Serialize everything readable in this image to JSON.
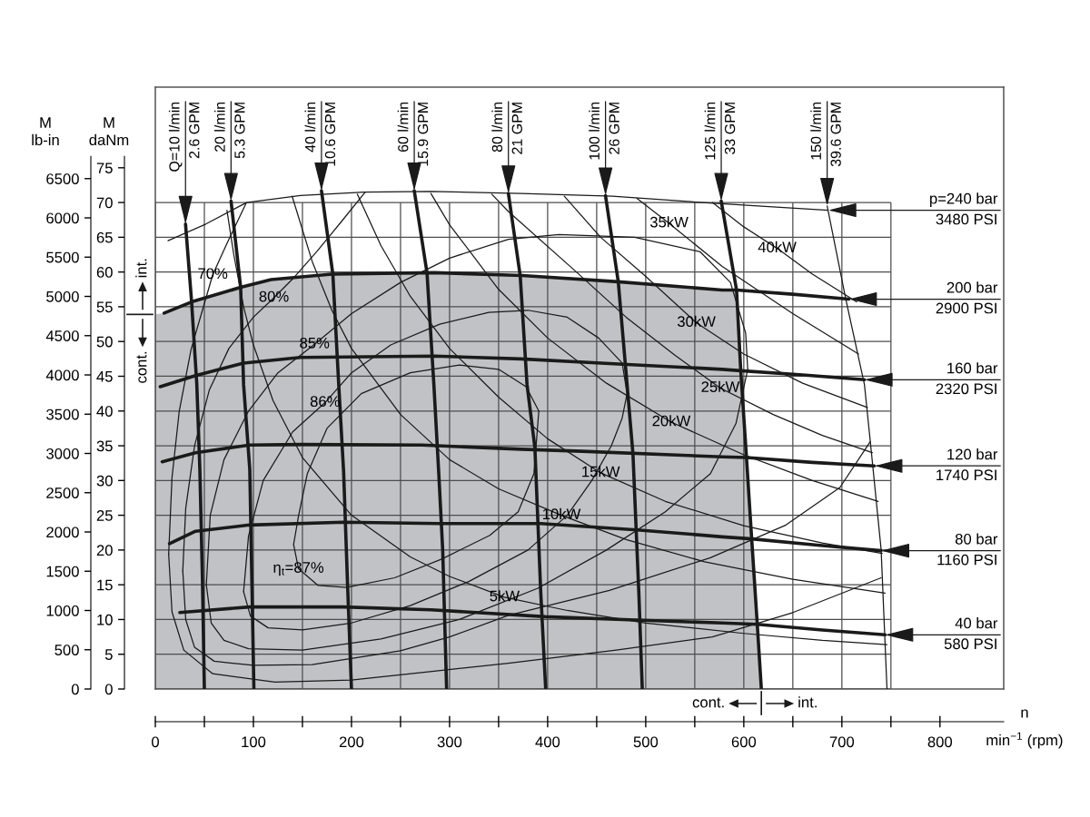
{
  "chart_data": {
    "type": "line",
    "xlabel": "n\nmin$^{−1}$ (rpm)",
    "ylabel": "M\ndaNm",
    "y2label": "M\nlb-in",
    "xlim": [
      0,
      865
    ],
    "ylim": [
      0,
      86.6
    ],
    "y2lim": [
      0,
      7665
    ],
    "xticks": [
      0,
      {
        "value": 50,
        "label": null
      },
      100,
      {
        "value": 150,
        "label": null
      },
      200,
      {
        "value": 250,
        "label": null
      },
      300,
      {
        "value": 350,
        "label": null
      },
      400,
      {
        "value": 450,
        "label": null
      },
      500,
      {
        "value": 550,
        "label": null
      },
      600,
      {
        "value": 650,
        "label": null
      },
      700,
      {
        "value": 750,
        "label": null
      },
      800
    ],
    "yticks": [
      0,
      5,
      10,
      15,
      20,
      25,
      30,
      35,
      40,
      45,
      50,
      55,
      60,
      65,
      70,
      75
    ],
    "y2ticks": [
      0,
      500,
      1000,
      1500,
      2000,
      2500,
      3000,
      3500,
      4000,
      4500,
      5000,
      5500,
      6000,
      6500
    ],
    "grid": true,
    "series": [
      {
        "type": "area",
        "color": "#c1c2c6",
        "x": [
          0,
          9,
          37,
          87,
          118,
          180,
          285,
          374,
          472,
          578,
          592.6,
          596.9,
          602.7,
          608,
          613.7,
          617.9
        ],
        "values": [
          53.9,
          54.1,
          55.7,
          57.8,
          58.9,
          59.7,
          59.9,
          59.5,
          58.6,
          57.4,
          57.4,
          45.8,
          33.4,
          21.7,
          9.4,
          0
        ]
      },
      {
        "name": "p=240 bar\n3480 PSI",
        "color": "#1a1a1a",
        "x": [
          13,
          51.5,
          93,
          148,
          213,
          281,
          373,
          466,
          558,
          686
        ],
        "values": [
          64.5,
          66.9,
          70.0,
          71.0,
          71.5,
          71.6,
          71.3,
          70.9,
          70.0,
          68.9
        ]
      },
      {
        "name": "200 bar\n2900 PSI",
        "color": "#1a1a1a",
        "x": [
          9,
          37,
          87,
          118,
          180,
          285,
          374,
          472,
          578,
          592.6,
          650,
          707
        ],
        "values": [
          54.1,
          55.7,
          57.8,
          58.9,
          59.7,
          59.9,
          59.5,
          58.6,
          57.4,
          57.4,
          56.8,
          56.1
        ]
      },
      {
        "name": "160 bar\n2320 PSI",
        "color": "#1a1a1a",
        "x": [
          5,
          41,
          90,
          148,
          285,
          373,
          481,
          578,
          596.9,
          660,
          723
        ],
        "values": [
          43.5,
          45.1,
          46.9,
          47.7,
          47.9,
          47.5,
          46.7,
          46.0,
          45.8,
          45.2,
          44.5
        ]
      },
      {
        "name": "120 bar\n1740 PSI",
        "color": "#1a1a1a",
        "x": [
          7,
          41,
          96,
          148,
          272,
          373,
          435,
          578,
          602.7,
          670,
          733
        ],
        "values": [
          32.7,
          34.0,
          35.1,
          35.2,
          35.1,
          34.5,
          34.2,
          33.4,
          33.3,
          32.6,
          32.1
        ]
      },
      {
        "name": "80 bar\n1160 PSI",
        "color": "#1a1a1a",
        "x": [
          14.5,
          41,
          96,
          192,
          290,
          393,
          491,
          578,
          608,
          675,
          740
        ],
        "values": [
          20.9,
          22.7,
          23.6,
          24.0,
          23.8,
          23.8,
          22.9,
          21.9,
          21.6,
          20.7,
          19.9
        ]
      },
      {
        "name": "40 bar\n580 PSI",
        "color": "#1a1a1a",
        "x": [
          25,
          96,
          192,
          281,
          398,
          496,
          578,
          613.7,
          680,
          744
        ],
        "values": [
          11.0,
          11.8,
          11.8,
          11.4,
          10.4,
          9.9,
          9.5,
          9.3,
          8.5,
          7.8
        ]
      },
      {
        "name": "Q=10 l/min\n2.6 GPM",
        "color": "#1a1a1a",
        "x": [
          30.8,
          37,
          42.3,
          45.4,
          48,
          50
        ],
        "values": [
          66.9,
          55.7,
          43.8,
          31.6,
          16,
          0
        ]
      },
      {
        "name": "20 l/min\n5.3 GPM",
        "color": "#1a1a1a",
        "x": [
          77.2,
          87,
          90,
          96.3,
          98.5,
          100.5
        ],
        "values": [
          70.2,
          57.8,
          43.8,
          31.6,
          15,
          0
        ]
      },
      {
        "name": "40 l/min\n10.6 GPM",
        "color": "#1a1a1a",
        "x": [
          169.4,
          181,
          187,
          192,
          196,
          200
        ],
        "values": [
          71.7,
          59.7,
          43.8,
          31.2,
          15,
          0
        ]
      },
      {
        "name": "60 l/min\n15.9 GPM",
        "color": "#1a1a1a",
        "x": [
          264,
          277,
          284,
          289,
          293,
          297
        ],
        "values": [
          71.7,
          59.9,
          43.8,
          31,
          20,
          0
        ]
      },
      {
        "name": "80 l/min\n21 GPM",
        "color": "#1a1a1a",
        "x": [
          360,
          372,
          379,
          387,
          393,
          398
        ],
        "values": [
          71.3,
          59.5,
          43.8,
          34.7,
          13.8,
          0
        ]
      },
      {
        "name": "100 l/min\n26 GPM",
        "color": "#1a1a1a",
        "x": [
          459,
          472,
          481,
          487,
          493,
          496.5
        ],
        "values": [
          71.0,
          58.6,
          43.8,
          33.8,
          13.8,
          0
        ]
      },
      {
        "name": "125 l/min\n33 GPM",
        "color": "#1a1a1a",
        "x": [
          577,
          592.6,
          596.9,
          602.7,
          608,
          613.7,
          617.9
        ],
        "values": [
          70.2,
          57.4,
          45.8,
          33.4,
          21.7,
          9.4,
          0
        ]
      },
      {
        "name": "150 l/min\n39.6 GPM",
        "color": "#1a1a1a",
        "x": [
          685,
          704,
          723,
          729,
          740,
          746
        ],
        "values": [
          69.5,
          56.1,
          43.8,
          35.6,
          20.1,
          0
        ]
      },
      {
        "color": "#1a1a1a",
        "x": [
          73,
          80,
          90,
          100,
          120,
          150,
          200,
          260,
          300,
          356,
          420,
          500,
          600,
          680,
          746
        ],
        "values": [
          68.9,
          62.5,
          55,
          49.5,
          41.5,
          33.3,
          25,
          19,
          16.2,
          13.2,
          11.3,
          9.5,
          8,
          7,
          6.4
        ]
      },
      {
        "color": "#1a1a1a",
        "x": [
          139.5,
          160,
          180,
          200,
          250,
          300,
          350,
          414,
          480,
          560,
          650,
          744
        ],
        "values": [
          70.9,
          61.5,
          54.5,
          49,
          39.5,
          33,
          28.8,
          25,
          21.5,
          18.3,
          15.8,
          13.8
        ]
      },
      {
        "color": "#1a1a1a",
        "x": [
          206,
          230,
          260,
          300,
          350,
          400,
          454,
          520,
          600,
          680,
          741
        ],
        "values": [
          71.2,
          63.8,
          56.5,
          49,
          42,
          36,
          31.1,
          27,
          23.5,
          21,
          19.5
        ]
      },
      {
        "color": "#1a1a1a",
        "x": [
          281,
          300,
          350,
          400,
          460,
          526,
          600,
          670,
          737
        ],
        "values": [
          71.3,
          66.8,
          57.5,
          50.5,
          44,
          38.4,
          33.7,
          30,
          27
        ]
      },
      {
        "color": "#1a1a1a",
        "x": [
          343,
          360,
          427,
          480,
          530,
          576,
          630,
          680,
          731
        ],
        "values": [
          71.2,
          68.7,
          60.3,
          53.5,
          48,
          43.3,
          39.5,
          36.5,
          34
        ]
      },
      {
        "color": "#1a1a1a",
        "x": [
          417,
          454,
          499,
          551.6,
          600,
          660,
          726
        ],
        "values": [
          70.9,
          65,
          59.5,
          52.7,
          48.2,
          44,
          40.5
        ]
      },
      {
        "color": "#1a1a1a",
        "x": [
          491,
          523.8,
          578,
          650,
          717
        ],
        "values": [
          70.6,
          67,
          60.8,
          54,
          48.2
        ]
      },
      {
        "color": "#1a1a1a",
        "x": [
          568,
          600,
          634,
          670,
          715
        ],
        "values": [
          70,
          66.5,
          63.4,
          59.7,
          55.7
        ]
      },
      {
        "color": "#1a1a1a",
        "x": [
          13.6,
          17,
          24.4,
          36.5,
          48,
          58.5,
          73,
          92.6
        ],
        "values": [
          19.4,
          30.4,
          40,
          48.9,
          54.5,
          59.6,
          64.1,
          69.9
        ]
      },
      {
        "color": "#1a1a1a",
        "x": [
          13.6,
          17,
          29,
          58.5,
          122,
          200,
          280,
          360,
          470,
          568,
          650,
          740
        ],
        "values": [
          19.4,
          11.1,
          5.6,
          2.2,
          1,
          1.3,
          2.5,
          3.7,
          5.6,
          7.5,
          11,
          16
        ]
      },
      {
        "color": "#1a1a1a",
        "x": [
          28,
          31,
          40,
          55,
          75,
          100,
          120.9,
          140,
          165,
          190,
          214
        ],
        "values": [
          17,
          26,
          35,
          43,
          49,
          53.5,
          56.3,
          59,
          63,
          67.3,
          71.5
        ]
      },
      {
        "color": "#1a1a1a",
        "x": [
          28,
          31,
          40,
          60,
          100,
          160,
          250,
          300,
          360,
          463,
          566,
          643,
          698,
          729
        ],
        "values": [
          17,
          10,
          6,
          4,
          3.4,
          3.5,
          5.5,
          7.5,
          10.6,
          14.2,
          18.9,
          23.6,
          29,
          35.6
        ]
      },
      {
        "color": "#1a1a1a",
        "x": [
          52,
          56,
          70,
          95,
          125,
          162.3,
          200,
          250,
          300,
          360,
          411.6,
          488.7,
          555.6,
          586.4,
          601.9,
          604
        ],
        "values": [
          15,
          25,
          33,
          40,
          45.5,
          49.6,
          54,
          58.5,
          62,
          64.7,
          65.4,
          65,
          62.9,
          58.5,
          51.2,
          46
        ]
      },
      {
        "color": "#1a1a1a",
        "x": [
          52,
          57,
          70,
          95,
          150,
          230,
          310,
          390,
          460,
          520,
          566,
          592,
          604
        ],
        "values": [
          15,
          9.5,
          7,
          5.8,
          5.6,
          7.2,
          10,
          14.5,
          20,
          25.5,
          31,
          38.2,
          46
        ]
      },
      {
        "color": "#1a1a1a",
        "x": [
          90,
          95,
          110,
          140,
          173,
          200,
          240,
          290,
          340,
          380,
          420,
          452,
          476,
          481
        ],
        "values": [
          14,
          22,
          30,
          37,
          41.2,
          45.5,
          49.5,
          52.5,
          54.2,
          54.5,
          53.5,
          50.5,
          46.9,
          42.5
        ]
      },
      {
        "color": "#1a1a1a",
        "x": [
          90,
          97,
          115,
          150,
          200,
          260,
          320,
          380,
          420,
          445,
          465,
          476,
          481
        ],
        "values": [
          14,
          10.5,
          8.8,
          8.5,
          9.5,
          12,
          15.5,
          20,
          25,
          30,
          35,
          39,
          42.5
        ]
      },
      {
        "color": "#1a1a1a",
        "x": [
          141,
          146,
          155,
          175,
          210,
          260,
          310,
          350,
          378,
          391
        ],
        "values": [
          20.8,
          24.9,
          31,
          37.5,
          42.5,
          45.5,
          46.6,
          46,
          43.5,
          40
        ]
      },
      {
        "color": "#1a1a1a",
        "x": [
          141,
          146,
          166,
          195,
          244,
          292,
          341,
          370,
          386,
          391
        ],
        "values": [
          20.8,
          17.3,
          14.9,
          14.6,
          16,
          18.7,
          22.1,
          25.5,
          31,
          40
        ]
      }
    ],
    "annotations": [
      {
        "text": "5kW",
        "x": 356,
        "y": 13.2
      },
      {
        "text": "10kW",
        "x": 414,
        "y": 25
      },
      {
        "text": "15kW",
        "x": 454,
        "y": 31.1
      },
      {
        "text": "20kW",
        "x": 526,
        "y": 38.4
      },
      {
        "text": "25kW",
        "x": 576,
        "y": 43.3
      },
      {
        "text": "30kW",
        "x": 551.6,
        "y": 52.7
      },
      {
        "text": "35kW",
        "x": 523.8,
        "y": 67
      },
      {
        "text": "40kW",
        "x": 634,
        "y": 63.4
      },
      {
        "text": "70%",
        "x": 58.5,
        "y": 59.6
      },
      {
        "text": "80%",
        "x": 120.9,
        "y": 56.3
      },
      {
        "text": "85%",
        "x": 162.3,
        "y": 49.6
      },
      {
        "text": "86%",
        "x": 173,
        "y": 41.2
      },
      {
        "text": "η$_{t}$=87%",
        "x": 146,
        "y": 17.3
      },
      "int.",
      "cont.",
      "cont.",
      "int."
    ]
  }
}
